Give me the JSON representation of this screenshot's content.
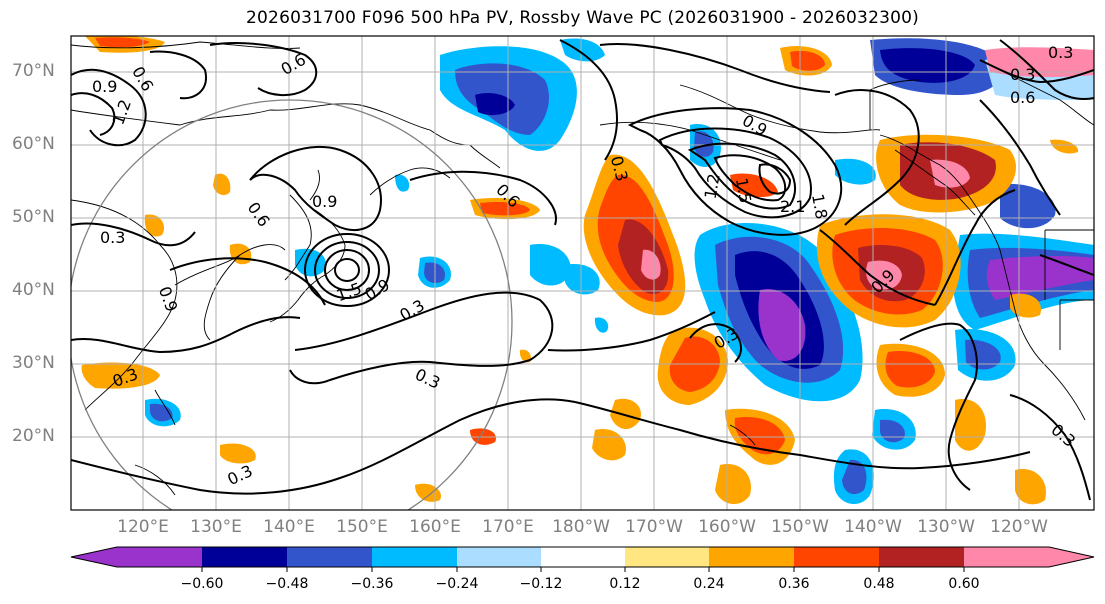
{
  "title": "2026031700 F096 500 hPa PV, Rossby Wave PC (2026031900 - 2026032300)",
  "map": {
    "lat_labels": [
      "70°N",
      "60°N",
      "50°N",
      "40°N",
      "30°N",
      "20°N"
    ],
    "lon_labels": [
      "120°E",
      "130°E",
      "140°E",
      "150°E",
      "160°E",
      "170°E",
      "180°W",
      "170°W",
      "160°W",
      "150°W",
      "140°W",
      "130°W",
      "120°W"
    ],
    "contour_labels": [
      "0.9",
      "1.2",
      "0.6",
      "0.6",
      "0.9",
      "0.3",
      "0.9",
      "0.6",
      "1.5",
      "0.9",
      "0.3",
      "0.3",
      "0.3",
      "0.3",
      "0.6",
      "0.3",
      "0.9",
      "1.2",
      "1.5",
      "2.1",
      "1.8",
      "0.3",
      "0.9",
      "0.6",
      "0.3",
      "0.3",
      "0.3"
    ]
  },
  "colorbar": {
    "ticks": [
      "−0.60",
      "−0.48",
      "−0.36",
      "−0.24",
      "−0.12",
      "0.12",
      "0.24",
      "0.36",
      "0.48",
      "0.60"
    ],
    "colors": [
      "#9933cc",
      "#000099",
      "#3355cc",
      "#00bbff",
      "#aaddff",
      "#ffffff",
      "#ffe680",
      "#ffa500",
      "#ff4500",
      "#b22222",
      "#ff88aa"
    ]
  }
}
